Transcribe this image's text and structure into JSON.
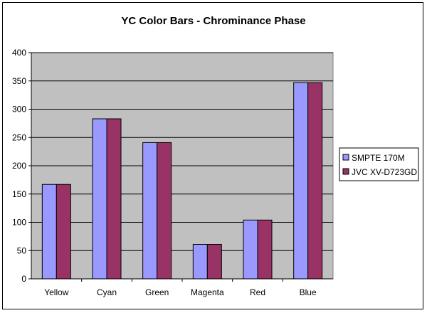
{
  "chart_data": {
    "type": "bar",
    "title": "YC Color Bars - Chrominance Phase",
    "xlabel": "",
    "ylabel": "",
    "categories": [
      "Yellow",
      "Cyan",
      "Green",
      "Magenta",
      "Red",
      "Blue"
    ],
    "series": [
      {
        "name": "SMPTE 170M",
        "values": [
          167,
          283,
          241,
          61,
          104,
          347
        ],
        "color": "#9999ff"
      },
      {
        "name": "JVC XV-D723GD",
        "values": [
          167,
          283,
          241,
          61,
          104,
          347
        ],
        "color": "#993366"
      }
    ],
    "ylim": [
      0,
      400
    ],
    "yticks": [
      0,
      50,
      100,
      150,
      200,
      250,
      300,
      350,
      400
    ],
    "grid": true,
    "plot_background": "#c0c0c0",
    "legend": "right"
  }
}
